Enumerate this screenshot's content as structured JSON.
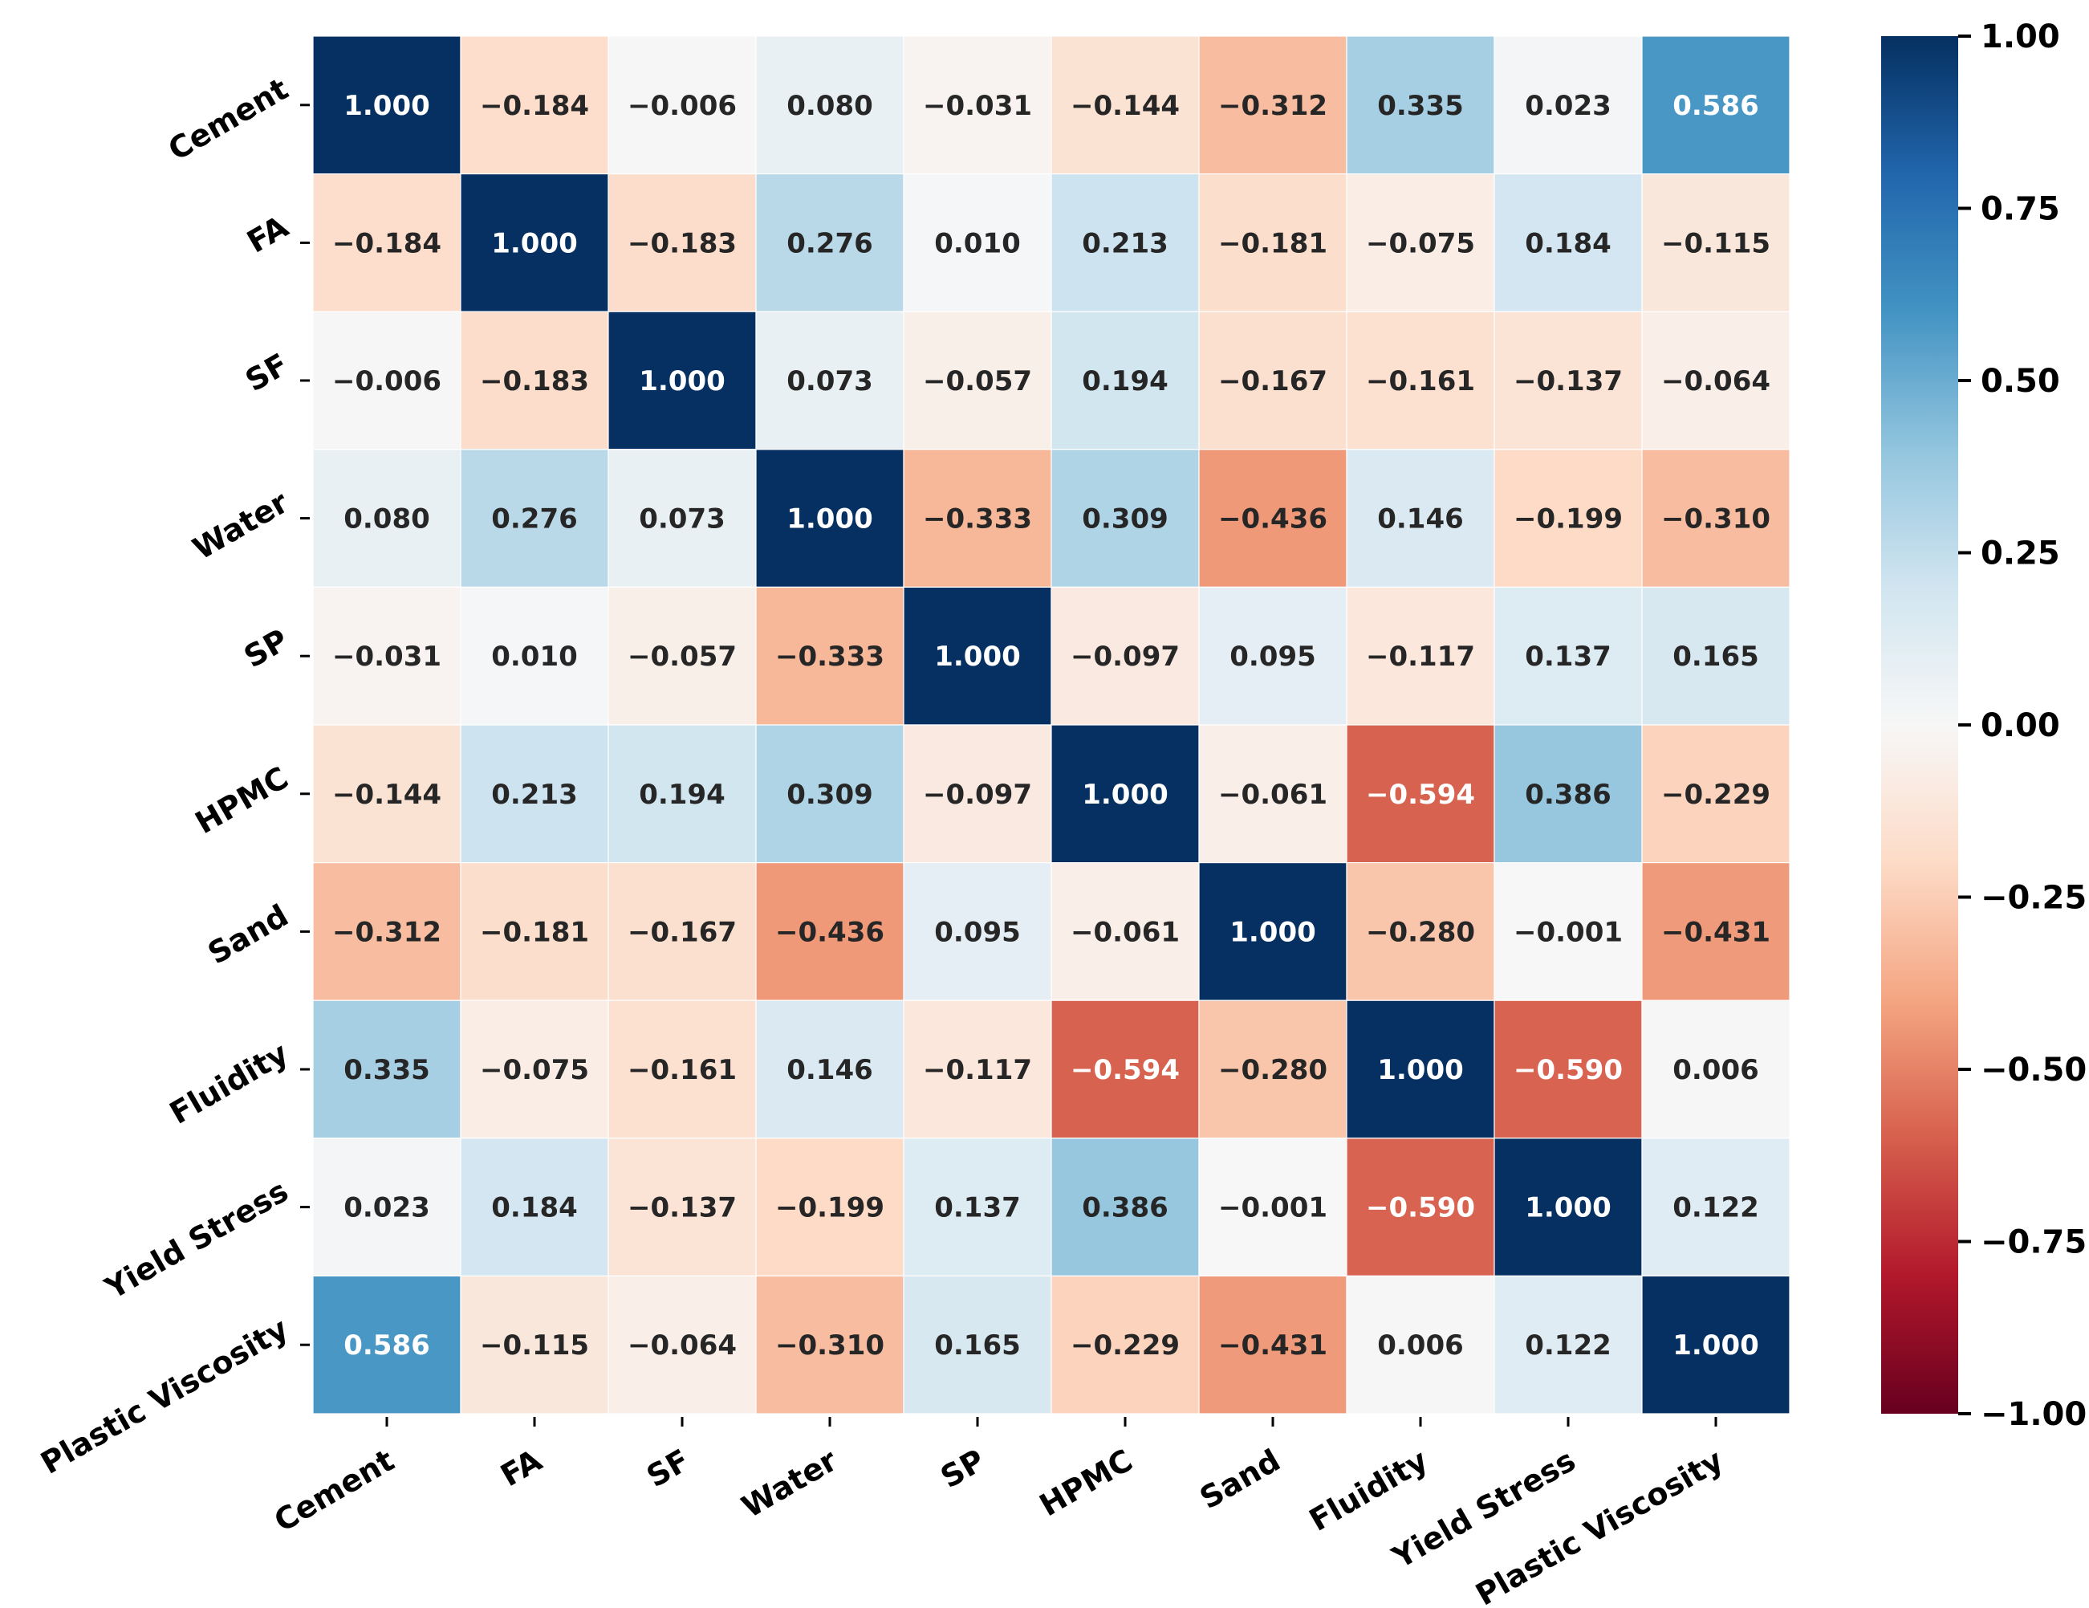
{
  "chart_data": {
    "type": "heatmap",
    "title": "",
    "variables": [
      "Cement",
      "FA",
      "SF",
      "Water",
      "SP",
      "HPMC",
      "Sand",
      "Fluidity",
      "Yield Stress",
      "Plastic Viscosity"
    ],
    "matrix": [
      [
        1.0,
        -0.184,
        -0.006,
        0.08,
        -0.031,
        -0.144,
        -0.312,
        0.335,
        0.023,
        0.586
      ],
      [
        -0.184,
        1.0,
        -0.183,
        0.276,
        0.01,
        0.213,
        -0.181,
        -0.075,
        0.184,
        -0.115
      ],
      [
        -0.006,
        -0.183,
        1.0,
        0.073,
        -0.057,
        0.194,
        -0.167,
        -0.161,
        -0.137,
        -0.064
      ],
      [
        0.08,
        0.276,
        0.073,
        1.0,
        -0.333,
        0.309,
        -0.436,
        0.146,
        -0.199,
        -0.31
      ],
      [
        -0.031,
        0.01,
        -0.057,
        -0.333,
        1.0,
        -0.097,
        0.095,
        -0.117,
        0.137,
        0.165
      ],
      [
        -0.144,
        0.213,
        0.194,
        0.309,
        -0.097,
        1.0,
        -0.061,
        -0.594,
        0.386,
        -0.229
      ],
      [
        -0.312,
        -0.181,
        -0.167,
        -0.436,
        0.095,
        -0.061,
        1.0,
        -0.28,
        -0.001,
        -0.431
      ],
      [
        0.335,
        -0.075,
        -0.161,
        0.146,
        -0.117,
        -0.594,
        -0.28,
        1.0,
        -0.59,
        0.006
      ],
      [
        0.023,
        0.184,
        -0.137,
        -0.199,
        0.137,
        0.386,
        -0.001,
        -0.59,
        1.0,
        0.122
      ],
      [
        0.586,
        -0.115,
        -0.064,
        -0.31,
        0.165,
        -0.229,
        -0.431,
        0.006,
        0.122,
        1.0
      ]
    ],
    "display_text": [
      [
        "1.000",
        "−0.184",
        "−0.006",
        "0.080",
        "−0.031",
        "−0.144",
        "−0.312",
        "0.335",
        "0.023",
        "0.586"
      ],
      [
        "−0.184",
        "1.000",
        "−0.183",
        "0.276",
        "0.010",
        "0.213",
        "−0.181",
        "−0.075",
        "0.184",
        "−0.115"
      ],
      [
        "−0.006",
        "−0.183",
        "1.000",
        "0.073",
        "−0.057",
        "0.194",
        "−0.167",
        "−0.161",
        "−0.137",
        "−0.064"
      ],
      [
        "0.080",
        "0.276",
        "0.073",
        "1.000",
        "−0.333",
        "0.309",
        "−0.436",
        "0.146",
        "−0.199",
        "−0.310"
      ],
      [
        "−0.031",
        "0.010",
        "−0.057",
        "−0.333",
        "1.000",
        "−0.097",
        "0.095",
        "−0.117",
        "0.137",
        "0.165"
      ],
      [
        "−0.144",
        "0.213",
        "0.194",
        "0.309",
        "−0.097",
        "1.000",
        "−0.061",
        "−0.594",
        "0.386",
        "−0.229"
      ],
      [
        "−0.312",
        "−0.181",
        "−0.167",
        "−0.436",
        "0.095",
        "−0.061",
        "1.000",
        "−0.280",
        "−0.001",
        "−0.431"
      ],
      [
        "0.335",
        "−0.075",
        "−0.161",
        "0.146",
        "−0.117",
        "−0.594",
        "−0.280",
        "1.000",
        "−0.590",
        "0.006"
      ],
      [
        "0.023",
        "0.184",
        "−0.137",
        "−0.199",
        "0.137",
        "0.386",
        "−0.001",
        "−0.590",
        "1.000",
        "0.122"
      ],
      [
        "0.586",
        "−0.115",
        "−0.064",
        "−0.310",
        "0.165",
        "−0.229",
        "−0.431",
        "0.006",
        "0.122",
        "1.000"
      ]
    ],
    "colorbar": {
      "colormap": "RdBu",
      "range": [
        -1.0,
        1.0
      ],
      "ticks": [
        1.0,
        0.75,
        0.5,
        0.25,
        0.0,
        -0.25,
        -0.5,
        -0.75,
        -1.0
      ],
      "tick_labels": [
        "1.00",
        "0.75",
        "0.50",
        "0.25",
        "0.00",
        "−0.25",
        "−0.50",
        "−0.75",
        "−1.00"
      ]
    },
    "colors": {
      "RdBu": [
        "#67001f",
        "#b2182b",
        "#d6604d",
        "#f4a582",
        "#fddbc7",
        "#f7f7f7",
        "#d1e5f0",
        "#92c5de",
        "#4393c3",
        "#2166ac",
        "#053061"
      ],
      "text_dark": "#262626",
      "text_light": "#ffffff"
    }
  }
}
